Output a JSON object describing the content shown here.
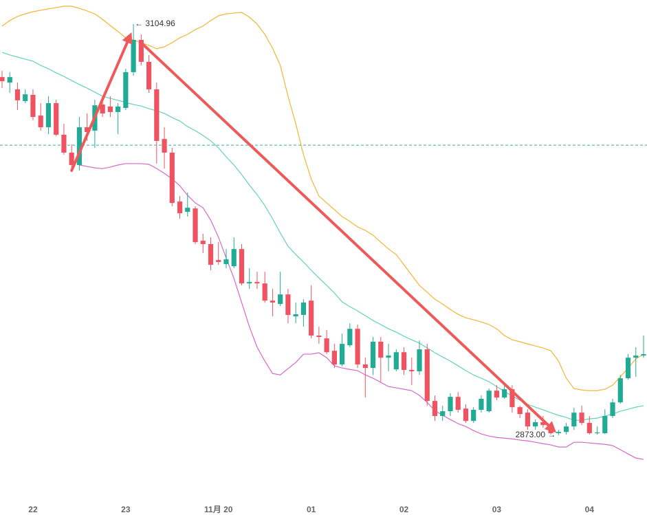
{
  "chart_data": {
    "type": "candlestick",
    "categories": [
      null,
      null,
      null,
      null,
      "22",
      null,
      null,
      null,
      null,
      null,
      null,
      null,
      null,
      null,
      null,
      null,
      "23",
      null,
      null,
      null,
      null,
      null,
      null,
      null,
      null,
      null,
      null,
      null,
      "11月 20",
      null,
      null,
      null,
      null,
      null,
      null,
      null,
      null,
      null,
      null,
      null,
      "01",
      null,
      null,
      null,
      null,
      null,
      null,
      null,
      null,
      null,
      null,
      null,
      "02",
      null,
      null,
      null,
      null,
      null,
      null,
      null,
      null,
      null,
      null,
      null,
      "03",
      null,
      null,
      null,
      null,
      null,
      null,
      null,
      null,
      null,
      null,
      null,
      "04",
      null,
      null,
      null,
      null,
      null,
      null,
      null
    ],
    "open": [
      3075.0,
      3071.9,
      3068.1,
      3061.5,
      3065.0,
      3053.3,
      3046.7,
      3060.3,
      3042.5,
      3032.4,
      3025.4,
      3046.7,
      3044.8,
      3059.5,
      3058.4,
      3055.3,
      3057.6,
      3077.8,
      3096.0,
      3083.6,
      3068.1,
      3040.1,
      3032.4,
      3004.8,
      2999.0,
      3000.9,
      2982.7,
      2980.8,
      2971.8,
      2969.5,
      2968.3,
      2978.0,
      2958.6,
      2959.4,
      2958.6,
      2948.9,
      2947.0,
      2952.4,
      2940.0,
      2940.8,
      2948.9,
      2929.2,
      2927.6,
      2920.6,
      2912.9,
      2923.7,
      2933.0,
      2912.9,
      2910.9,
      2925.7,
      2916.7,
      2910.1,
      2919.8,
      2909.8,
      2909.0,
      2921.4,
      2892.3,
      2883.8,
      2886.5,
      2894.6,
      2888.0,
      2881.0,
      2887.3,
      2886.5,
      2898.1,
      2894.2,
      2898.9,
      2888.8,
      2885.7,
      2877.9,
      2880.3,
      2877.9,
      2874.1,
      2874.8,
      2877.9,
      2885.7,
      2879.9,
      2874.1,
      2874.1,
      2883.8,
      2891.5,
      2905.1,
      2916.7,
      2917.9
    ],
    "close": [
      3072.7,
      3075.0,
      3061.9,
      3065.3,
      3052.5,
      3046.7,
      3060.3,
      3042.5,
      3032.4,
      3025.4,
      3046.7,
      3044.0,
      3059.1,
      3054.5,
      3055.3,
      3058.4,
      3077.8,
      3096.0,
      3083.6,
      3068.1,
      3039.0,
      3032.4,
      3004.0,
      2998.2,
      3001.3,
      2981.9,
      2980.8,
      2969.1,
      2970.7,
      2972.2,
      2978.0,
      2958.6,
      2959.4,
      2958.6,
      2948.9,
      2947.8,
      2952.4,
      2940.8,
      2941.2,
      2947.8,
      2929.2,
      2928.4,
      2919.8,
      2912.9,
      2924.5,
      2933.0,
      2912.9,
      2910.9,
      2925.7,
      2916.7,
      2917.9,
      2919.8,
      2909.8,
      2909.0,
      2921.4,
      2892.3,
      2883.8,
      2886.5,
      2894.6,
      2887.3,
      2881.0,
      2887.3,
      2893.5,
      2898.1,
      2894.2,
      2898.9,
      2888.8,
      2884.9,
      2877.9,
      2880.3,
      2878.7,
      2874.1,
      2874.8,
      2877.9,
      2885.7,
      2879.9,
      2874.1,
      2874.5,
      2883.8,
      2891.5,
      2905.1,
      2916.7,
      2917.9,
      2918.7
    ],
    "high": [
      3078.5,
      3077.8,
      3071.9,
      3068.1,
      3068.1,
      3060.3,
      3064.2,
      3062.2,
      3048.7,
      3037.0,
      3052.5,
      3054.5,
      3062.2,
      3064.2,
      3064.2,
      3060.3,
      3079.7,
      3104.96,
      3099.1,
      3087.5,
      3071.9,
      3046.7,
      3035.1,
      3007.9,
      3009.9,
      3002.1,
      2986.6,
      2984.6,
      2981.9,
      2978.0,
      2984.6,
      2980.8,
      2967.2,
      2965.2,
      2965.2,
      2955.5,
      2965.2,
      2955.5,
      2947.8,
      2949.7,
      2957.5,
      2934.2,
      2932.3,
      2924.5,
      2930.3,
      2936.1,
      2935.4,
      2916.7,
      2928.4,
      2928.4,
      2924.5,
      2921.4,
      2922.6,
      2916.7,
      2926.4,
      2924.5,
      2895.4,
      2889.6,
      2896.6,
      2897.3,
      2890.4,
      2888.8,
      2895.4,
      2899.3,
      2901.2,
      2901.2,
      2901.2,
      2889.6,
      2887.6,
      2881.8,
      2883.8,
      2879.9,
      2876.0,
      2879.9,
      2888.4,
      2889.6,
      2883.8,
      2877.9,
      2887.6,
      2893.5,
      2907.0,
      2918.7,
      2922.6,
      2929.2
    ],
    "low": [
      3068.8,
      3066.1,
      3056.4,
      3060.3,
      3050.6,
      3044.8,
      3042.8,
      3041.7,
      3031.2,
      3022.3,
      3022.3,
      3039.0,
      3035.1,
      3052.5,
      3052.5,
      3042.8,
      3056.4,
      3075.8,
      3081.6,
      3066.1,
      3026.2,
      3023.4,
      3002.1,
      2995.1,
      2996.3,
      2980.8,
      2975.7,
      2966.0,
      2969.1,
      2967.2,
      2967.2,
      2957.5,
      2955.5,
      2955.5,
      2947.8,
      2940.0,
      2945.8,
      2936.1,
      2936.1,
      2934.2,
      2927.6,
      2924.5,
      2918.7,
      2910.9,
      2911.7,
      2922.6,
      2910.9,
      2894.2,
      2907.0,
      2903.2,
      2909.0,
      2909.0,
      2907.0,
      2901.2,
      2907.0,
      2889.6,
      2881.0,
      2881.0,
      2883.8,
      2885.7,
      2879.9,
      2879.9,
      2885.7,
      2885.7,
      2892.7,
      2893.5,
      2885.7,
      2882.6,
      2876.0,
      2876.0,
      2877.2,
      2873.3,
      2873.0,
      2873.3,
      2876.0,
      2878.7,
      2873.3,
      2873.3,
      2873.6,
      2882.6,
      2890.7,
      2904.3,
      2905.9,
      2916.7
    ],
    "up_color": "#22ab94",
    "down_color": "#ef5261",
    "overlays": [
      {
        "color": "#f2b533",
        "values": [
          3103.8,
          3106.9,
          3109.2,
          3110.7,
          3111.9,
          3112.7,
          3113.5,
          3114.2,
          3115.0,
          3115.0,
          3113.8,
          3112.3,
          3110.7,
          3107.6,
          3104.1,
          3100.7,
          3097.2,
          3096.0,
          3094.4,
          3092.9,
          3091.0,
          3092.1,
          3094.4,
          3097.2,
          3099.1,
          3101.8,
          3103.8,
          3106.9,
          3109.6,
          3110.7,
          3111.1,
          3111.5,
          3108.8,
          3104.9,
          3099.1,
          3091.3,
          3081.6,
          3064.2,
          3048.7,
          3031.2,
          3017.6,
          3007.9,
          3004.0,
          3000.2,
          2996.3,
          2993.6,
          2990.5,
          2988.5,
          2985.8,
          2981.9,
          2978.0,
          2974.9,
          2969.1,
          2963.3,
          2957.5,
          2953.6,
          2949.7,
          2947.0,
          2943.9,
          2941.2,
          2939.2,
          2938.1,
          2936.9,
          2935.4,
          2933.0,
          2929.2,
          2926.8,
          2925.7,
          2924.5,
          2923.3,
          2922.2,
          2920.6,
          2914.8,
          2905.1,
          2899.3,
          2898.5,
          2898.1,
          2898.1,
          2898.9,
          2901.2,
          2905.9,
          2910.9,
          2916.0,
          2918.7
        ]
      },
      {
        "color": "#5fd3b8",
        "values": [
          3089.0,
          3087.5,
          3086.3,
          3085.1,
          3084.0,
          3081.6,
          3079.7,
          3077.4,
          3075.4,
          3073.1,
          3070.8,
          3068.8,
          3066.5,
          3064.2,
          3063.0,
          3061.9,
          3060.7,
          3059.5,
          3058.7,
          3057.2,
          3056.0,
          3054.5,
          3052.2,
          3050.2,
          3047.1,
          3044.8,
          3042.1,
          3039.0,
          3035.1,
          3030.0,
          3025.4,
          3020.0,
          3014.1,
          3008.7,
          3002.5,
          2995.1,
          2987.0,
          2979.6,
          2974.9,
          2970.7,
          2966.0,
          2961.7,
          2957.5,
          2953.2,
          2948.2,
          2945.5,
          2943.1,
          2940.4,
          2937.7,
          2935.4,
          2933.0,
          2931.1,
          2928.8,
          2926.8,
          2924.9,
          2922.2,
          2919.5,
          2917.1,
          2914.8,
          2912.1,
          2909.4,
          2907.0,
          2905.1,
          2903.2,
          2900.4,
          2897.7,
          2895.0,
          2892.7,
          2890.4,
          2888.8,
          2887.3,
          2885.7,
          2884.2,
          2883.0,
          2881.4,
          2881.4,
          2882.2,
          2882.6,
          2883.8,
          2884.9,
          2886.5,
          2887.6,
          2888.8,
          2889.6
        ]
      },
      {
        "color": "#d667c9",
        "values": [
          null,
          null,
          null,
          null,
          null,
          null,
          null,
          null,
          null,
          null,
          3025.4,
          3024.6,
          3023.8,
          3023.4,
          3024.2,
          3025.4,
          3026.2,
          3026.2,
          3026.2,
          3025.8,
          3023.4,
          3020.7,
          3017.6,
          3013.7,
          3008.3,
          3004.0,
          3001.3,
          2994.3,
          2984.6,
          2973.0,
          2961.4,
          2947.8,
          2934.2,
          2922.6,
          2914.8,
          2907.8,
          2907.0,
          2910.5,
          2914.0,
          2918.7,
          2918.7,
          2919.5,
          2916.7,
          2912.1,
          2910.9,
          2910.1,
          2909.4,
          2907.0,
          2905.1,
          2902.8,
          2900.4,
          2899.7,
          2898.9,
          2898.1,
          2895.4,
          2891.5,
          2886.9,
          2884.2,
          2881.8,
          2879.5,
          2877.9,
          2875.6,
          2873.7,
          2872.5,
          2871.7,
          2871.3,
          2870.9,
          2870.2,
          2869.8,
          2869.0,
          2868.2,
          2867.5,
          2866.3,
          2866.3,
          2869.0,
          2869.0,
          2868.6,
          2868.2,
          2867.8,
          2867.1,
          2864.8,
          2862.4,
          2860.1,
          2859.3
        ]
      }
    ],
    "price_line": {
      "value": 3036.6,
      "color": "#3aa8a0"
    },
    "annotations": [
      {
        "value": 3104.96,
        "label": "← 3104.96"
      },
      {
        "value": 2873.0,
        "label": "2873.00 →"
      }
    ],
    "trend_color": "#ee5a5a",
    "ylim": [
      2839.2,
      3118.5
    ]
  }
}
